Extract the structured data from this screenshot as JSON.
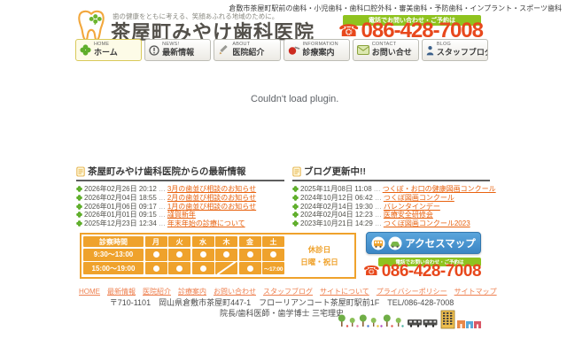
{
  "colors": {
    "accent_orange": "#e8481c",
    "brand_green": "#8fc31f",
    "table_orange": "#efa22c",
    "link_orange": "#e8620f",
    "footer_link_orange": "#ee8050",
    "access_blue": "#3c86c4"
  },
  "icons": {
    "phone_glyph": "☎"
  },
  "header": {
    "services_line": "倉敷市茶屋町駅前の歯科・小児歯科・歯科口腔外科・審美歯科・予防歯科・インプラント・スポーツ歯科",
    "tagline": "歯の健康をともに考える、笑顔あふれる地域のために。",
    "clinic_name": "茶屋町みやけ歯科医院",
    "phone_banner": "電話でお問い合わせ・ご予約は",
    "phone_number": "086-428-7008"
  },
  "nav": {
    "tabs": [
      {
        "en": "HOME",
        "jp": "ホーム",
        "icon": "clover-icon",
        "active": true
      },
      {
        "en": "NEWS!",
        "jp": "最新情報",
        "icon": "exclamation-circle-icon",
        "active": false
      },
      {
        "en": "ABOUT",
        "jp": "医院紹介",
        "icon": "pencil-icon",
        "active": false
      },
      {
        "en": "INFORMATION",
        "jp": "診療案内",
        "icon": "treatment-icon",
        "active": false
      },
      {
        "en": "CONTACT",
        "jp": "お問い合せ",
        "icon": "mail-icon",
        "active": false
      },
      {
        "en": "BLOG",
        "jp": "スタッフブログ",
        "icon": "person-icon",
        "active": false
      }
    ]
  },
  "plugin": {
    "message": "Couldn't load plugin."
  },
  "news": {
    "title": "茶屋町みやけ歯科医院からの最新情報",
    "separator": "…",
    "items": [
      {
        "date": "2026年02月26日",
        "time": "20:12",
        "title": "3月の歯並び相談のお知らせ"
      },
      {
        "date": "2026年02月04日",
        "time": "18:55",
        "title": "2月の歯並び相談のお知らせ"
      },
      {
        "date": "2026年01月06日",
        "time": "09:17",
        "title": "1月の歯並び相談のお知らせ"
      },
      {
        "date": "2026年01月01日",
        "time": "09:15",
        "title": "謹賀新年"
      },
      {
        "date": "2025年12月23日",
        "time": "12:34",
        "title": "年末年始の診療について"
      }
    ]
  },
  "blog": {
    "title": "ブログ更新中!!",
    "separator": "…",
    "items": [
      {
        "date": "2025年11月08日",
        "time": "11:08",
        "title": "つくぼ・お口の健康図画コンクール"
      },
      {
        "date": "2024年10月12日",
        "time": "06:42",
        "title": "つくぼ図画コンクール"
      },
      {
        "date": "2024年02月14日",
        "time": "19:30",
        "title": "バレンタインデー"
      },
      {
        "date": "2024年02月04日",
        "time": "12:23",
        "title": "医療安全研修会"
      },
      {
        "date": "2023年10月21日",
        "time": "14:29",
        "title": "つくぼ図画コンクール2023"
      }
    ]
  },
  "hours": {
    "header_label": "診察時間",
    "days": [
      "月",
      "火",
      "水",
      "木",
      "金",
      "土"
    ],
    "rows": [
      {
        "label": "9:30～13:00",
        "cells": [
          "open",
          "open",
          "open",
          "open",
          "open",
          "open"
        ]
      },
      {
        "label": "15:00～19:00",
        "cells": [
          "open",
          "open",
          "open",
          "closed",
          "open",
          "～17:00"
        ]
      }
    ],
    "closed_label": "休診日",
    "closed_days": "日曜・祝日"
  },
  "access": {
    "button_label": "アクセスマップ",
    "phone_banner": "電話でお問い合わせ・ご予約は",
    "phone_number": "086-428-7008"
  },
  "footer": {
    "links": [
      "HOME",
      "最新情報",
      "医院紹介",
      "診療案内",
      "お問い合わせ",
      "スタッフブログ",
      "サイトについて",
      "プライバシーポリシー",
      "サイトマップ"
    ],
    "address": "〒710-1101　岡山県倉敷市茶屋町447-1　フローリアンコート茶屋町駅前1F　TEL/086-428-7008",
    "director": "院長/歯科医師・歯学博士 三宅理史"
  }
}
